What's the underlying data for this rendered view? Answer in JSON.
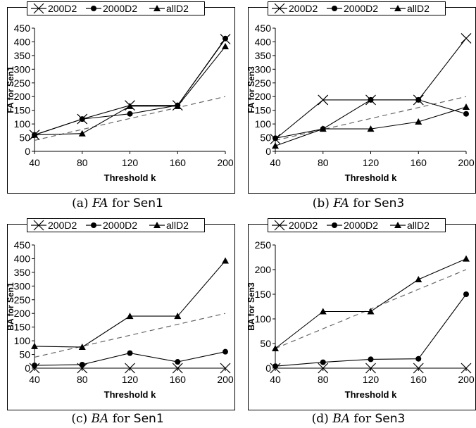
{
  "chart_data": [
    {
      "type": "line",
      "panel": "a",
      "caption": {
        "prefix": "(a) ",
        "metric": "FA",
        "mid": " for ",
        "dataset": "Sen1"
      },
      "xlabel": "Threshold k",
      "ylabel": "FA for Sen1",
      "categories": [
        "40",
        "80",
        "120",
        "160",
        "200"
      ],
      "x": [
        40,
        80,
        120,
        160,
        200
      ],
      "ylim": [
        0,
        450
      ],
      "yticks": [
        0,
        50,
        100,
        150,
        200,
        250,
        300,
        350,
        400,
        450
      ],
      "legend": "top",
      "series": [
        {
          "name": "200D2",
          "marker": "x",
          "values": [
            60,
            118,
            168,
            168,
            410
          ]
        },
        {
          "name": "2000D2",
          "marker": "circle",
          "values": [
            60,
            118,
            137,
            168,
            412
          ]
        },
        {
          "name": "allD2",
          "marker": "triangle",
          "values": [
            60,
            65,
            165,
            165,
            383
          ]
        }
      ],
      "reference": {
        "style": "dashed",
        "values": [
          40,
          80,
          120,
          160,
          200
        ]
      }
    },
    {
      "type": "line",
      "panel": "b",
      "caption": {
        "prefix": "(b) ",
        "metric": "FA",
        "mid": " for ",
        "dataset": "Sen3"
      },
      "xlabel": "Threshold k",
      "ylabel": "FA for Sen3",
      "categories": [
        "40",
        "80",
        "120",
        "160",
        "200"
      ],
      "x": [
        40,
        80,
        120,
        160,
        200
      ],
      "ylim": [
        0,
        450
      ],
      "yticks": [
        0,
        50,
        100,
        150,
        200,
        250,
        300,
        350,
        400,
        450
      ],
      "legend": "top",
      "series": [
        {
          "name": "200D2",
          "marker": "x",
          "values": [
            45,
            188,
            188,
            188,
            413
          ]
        },
        {
          "name": "2000D2",
          "marker": "circle",
          "values": [
            48,
            82,
            188,
            188,
            137
          ]
        },
        {
          "name": "allD2",
          "marker": "triangle",
          "values": [
            20,
            82,
            82,
            108,
            162
          ]
        }
      ],
      "reference": {
        "style": "dashed",
        "values": [
          40,
          80,
          120,
          160,
          200
        ]
      }
    },
    {
      "type": "line",
      "panel": "c",
      "caption": {
        "prefix": "(c) ",
        "metric": "BA",
        "mid": " for ",
        "dataset": "Sen1"
      },
      "xlabel": "Threshold k",
      "ylabel": "BA for Sen1",
      "categories": [
        "40",
        "80",
        "120",
        "160",
        "200"
      ],
      "x": [
        40,
        80,
        120,
        160,
        200
      ],
      "ylim": [
        0,
        450
      ],
      "yticks": [
        0,
        50,
        100,
        150,
        200,
        250,
        300,
        350,
        400,
        450
      ],
      "legend": "top",
      "series": [
        {
          "name": "200D2",
          "marker": "x",
          "values": [
            0,
            0,
            0,
            0,
            0
          ]
        },
        {
          "name": "2000D2",
          "marker": "circle",
          "values": [
            10,
            13,
            55,
            23,
            60
          ]
        },
        {
          "name": "allD2",
          "marker": "triangle",
          "values": [
            80,
            77,
            190,
            190,
            392
          ]
        }
      ],
      "reference": {
        "style": "dashed",
        "values": [
          40,
          80,
          120,
          160,
          200
        ]
      }
    },
    {
      "type": "line",
      "panel": "d",
      "caption": {
        "prefix": "(d) ",
        "metric": "BA",
        "mid": " for ",
        "dataset": "Sen3"
      },
      "xlabel": "Threshold k",
      "ylabel": "BA for Sen3",
      "categories": [
        "40",
        "80",
        "120",
        "160",
        "200"
      ],
      "x": [
        40,
        80,
        120,
        160,
        200
      ],
      "ylim": [
        0,
        250
      ],
      "yticks": [
        0,
        50,
        100,
        150,
        200,
        250
      ],
      "legend": "top",
      "series": [
        {
          "name": "200D2",
          "marker": "x",
          "values": [
            0,
            0,
            0,
            0,
            0
          ]
        },
        {
          "name": "2000D2",
          "marker": "circle",
          "values": [
            4,
            12,
            18,
            19,
            150
          ]
        },
        {
          "name": "allD2",
          "marker": "triangle",
          "values": [
            40,
            115,
            115,
            180,
            222
          ]
        }
      ],
      "reference": {
        "style": "dashed",
        "values": [
          40,
          80,
          120,
          160,
          200
        ]
      }
    }
  ]
}
